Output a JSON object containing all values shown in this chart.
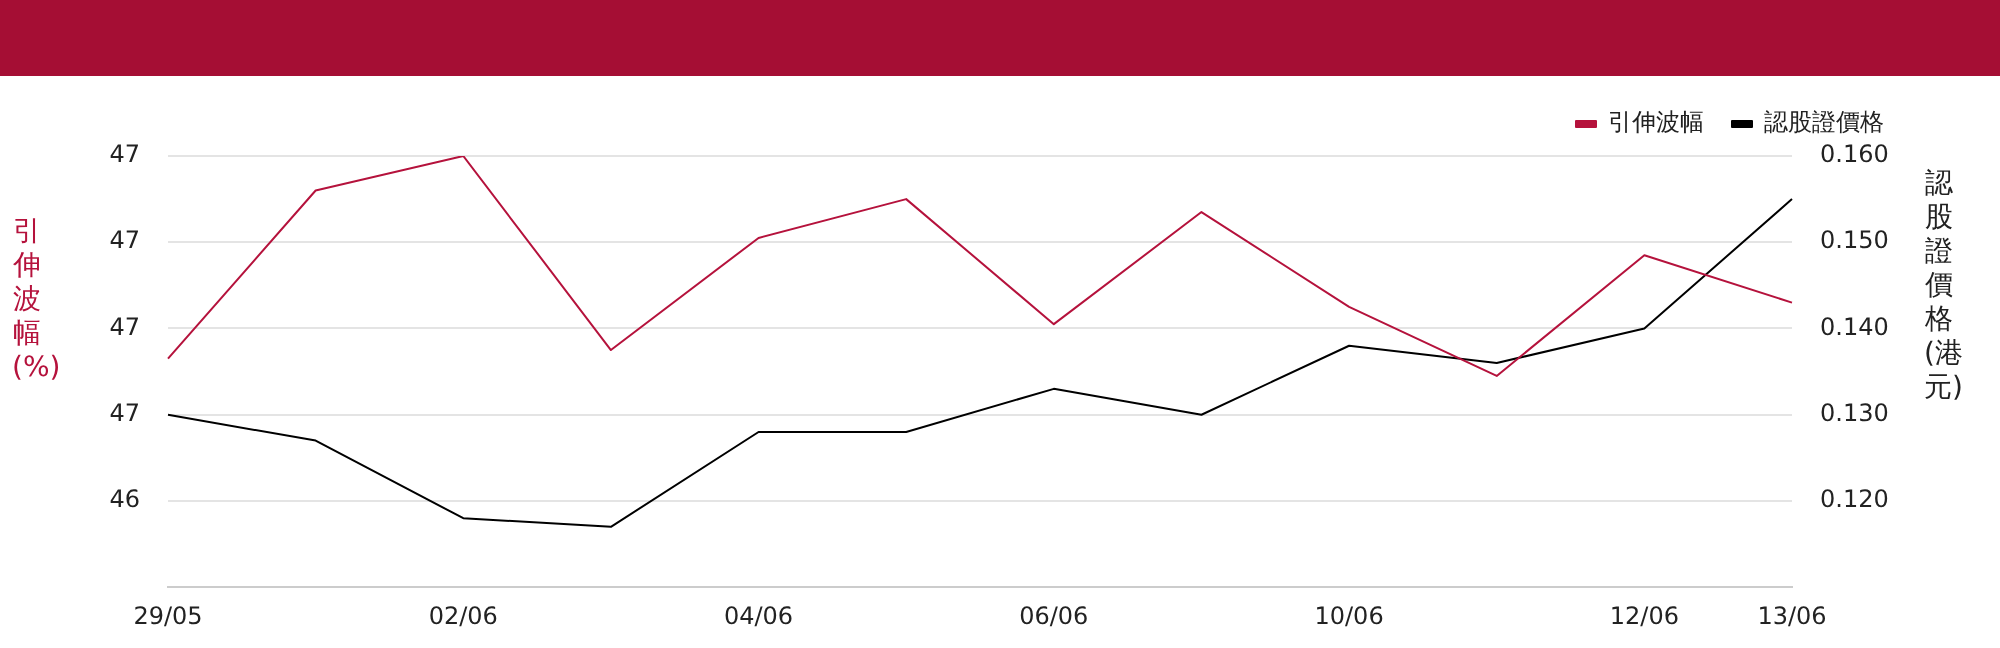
{
  "chart_data": {
    "type": "line",
    "categories": [
      "29/05",
      null,
      "02/06",
      null,
      "04/06",
      null,
      "06/06",
      null,
      "10/06",
      null,
      "12/06",
      "13/06"
    ],
    "series": [
      {
        "name": "引伸波幅",
        "color": "#b5123c",
        "values": [
          46.73,
          47.12,
          47.2,
          46.75,
          47.01,
          47.1,
          46.81,
          47.07,
          46.85,
          46.69,
          46.97,
          46.86
        ]
      },
      {
        "name": "認股證價格",
        "color": "#000000",
        "axis": "y2",
        "values": [
          0.13,
          0.127,
          0.118,
          0.117,
          0.128,
          0.128,
          0.133,
          0.13,
          0.138,
          0.136,
          0.14,
          0.155
        ]
      }
    ],
    "ylabel": "引伸波幅(%)",
    "y2label": "認股證價格(港元)",
    "ylim": [
      46.2,
      47.2
    ],
    "yticks": [
      {
        "value": 46.4,
        "label": "46"
      },
      {
        "value": 46.6,
        "label": "47"
      },
      {
        "value": 46.8,
        "label": "47"
      },
      {
        "value": 47.0,
        "label": "47"
      },
      {
        "value": 47.2,
        "label": "47"
      }
    ],
    "y2lim": [
      0.11,
      0.16
    ],
    "y2ticks": [
      {
        "value": 0.12,
        "label": "0.120"
      },
      {
        "value": 0.13,
        "label": "0.130"
      },
      {
        "value": 0.14,
        "label": "0.140"
      },
      {
        "value": 0.15,
        "label": "0.150"
      },
      {
        "value": 0.16,
        "label": "0.160"
      }
    ],
    "grid": "y",
    "legend": "top right",
    "marker": "none",
    "line_style": "solid"
  }
}
